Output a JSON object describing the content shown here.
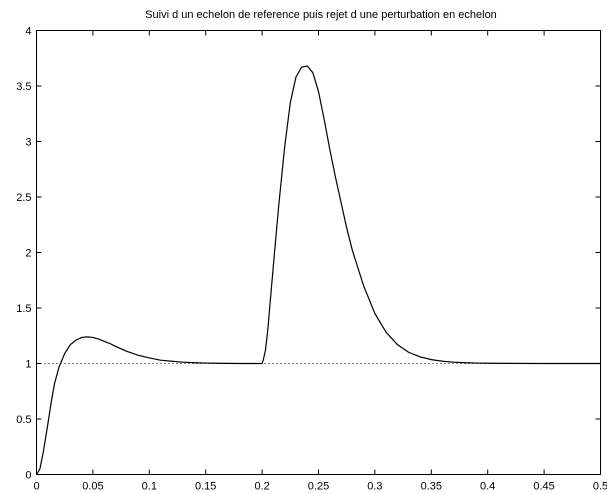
{
  "chart_data": {
    "type": "line",
    "title": "Suivi d un echelon de reference puis rejet d une perturbation en echelon",
    "xlabel": "",
    "ylabel": "",
    "xlim": [
      0,
      0.5
    ],
    "ylim": [
      0,
      4
    ],
    "x_ticks": [
      "0",
      "0.05",
      "0.1",
      "0.15",
      "0.2",
      "0.25",
      "0.3",
      "0.35",
      "0.4",
      "0.45",
      "0.5"
    ],
    "y_ticks": [
      "0",
      "0.5",
      "1",
      "1.5",
      "2",
      "2.5",
      "3",
      "3.5",
      "4"
    ],
    "grid": false,
    "series": [
      {
        "style": "solid",
        "color": "#000000",
        "x": [
          0,
          0.003,
          0.006,
          0.01,
          0.013,
          0.016,
          0.02,
          0.025,
          0.03,
          0.035,
          0.04,
          0.045,
          0.05,
          0.055,
          0.06,
          0.065,
          0.07,
          0.08,
          0.09,
          0.1,
          0.11,
          0.12,
          0.13,
          0.14,
          0.15,
          0.16,
          0.17,
          0.18,
          0.19,
          0.2,
          0.201,
          0.203,
          0.205,
          0.208,
          0.211,
          0.215,
          0.22,
          0.225,
          0.23,
          0.235,
          0.24,
          0.245,
          0.25,
          0.255,
          0.26,
          0.265,
          0.27,
          0.275,
          0.28,
          0.29,
          0.3,
          0.31,
          0.32,
          0.33,
          0.34,
          0.35,
          0.36,
          0.37,
          0.38,
          0.39,
          0.4,
          0.42,
          0.45,
          0.48,
          0.5
        ],
        "y": [
          0,
          0.05,
          0.2,
          0.45,
          0.65,
          0.82,
          0.97,
          1.09,
          1.17,
          1.21,
          1.235,
          1.24,
          1.235,
          1.22,
          1.2,
          1.18,
          1.155,
          1.11,
          1.075,
          1.05,
          1.03,
          1.02,
          1.012,
          1.007,
          1.004,
          1.002,
          1.001,
          1.0,
          1.0,
          1.0,
          1.03,
          1.12,
          1.3,
          1.65,
          2.0,
          2.45,
          2.95,
          3.35,
          3.58,
          3.67,
          3.68,
          3.62,
          3.45,
          3.2,
          2.93,
          2.68,
          2.45,
          2.22,
          2.02,
          1.7,
          1.45,
          1.28,
          1.17,
          1.1,
          1.06,
          1.035,
          1.02,
          1.012,
          1.007,
          1.004,
          1.002,
          1.001,
          1.0,
          1.0,
          1.0
        ]
      },
      {
        "style": "dotted",
        "color": "#000000",
        "x": [
          0,
          0.5
        ],
        "y": [
          1,
          1
        ]
      }
    ]
  }
}
